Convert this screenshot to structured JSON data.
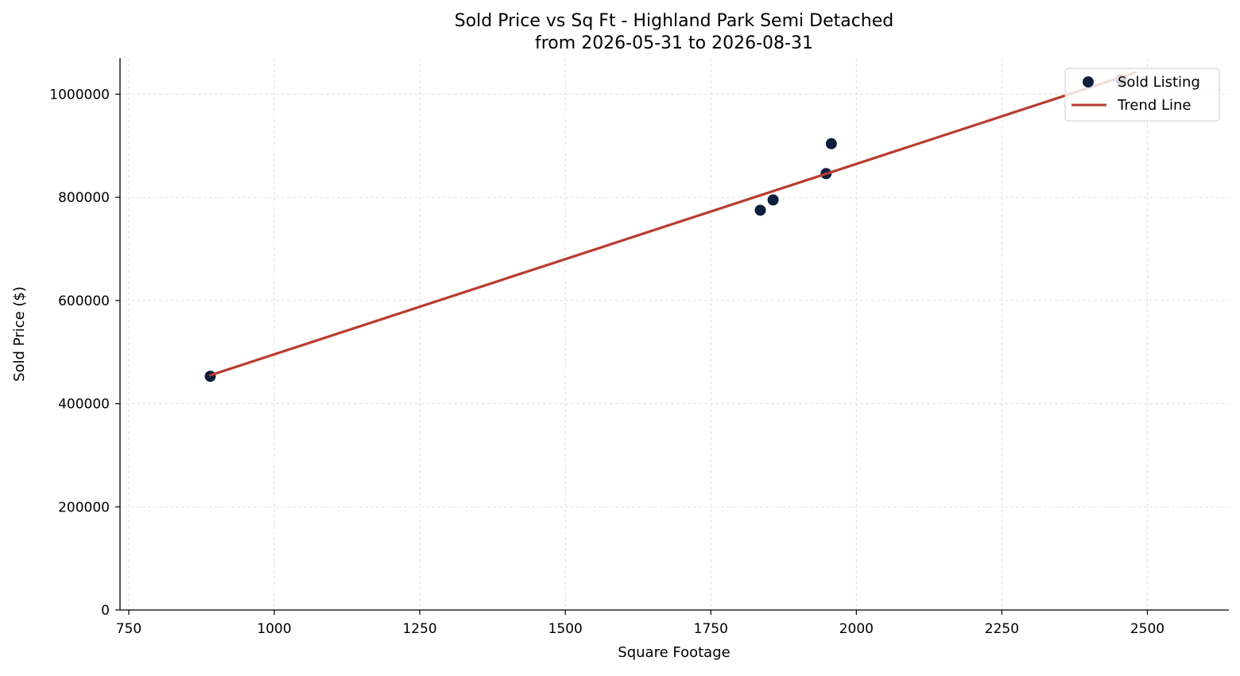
{
  "chart_data": {
    "type": "scatter",
    "title": "Sold Price vs Sq Ft - Highland Park Semi Detached",
    "subtitle": "from 2026-05-31 to 2026-08-31",
    "xlabel": "Square Footage",
    "ylabel": "Sold Price ($)",
    "xlim": [
      735,
      2640
    ],
    "ylim": [
      0,
      1070000
    ],
    "xticks": [
      750,
      1000,
      1250,
      1500,
      1750,
      2000,
      2250,
      2500
    ],
    "yticks": [
      0,
      200000,
      400000,
      600000,
      800000,
      1000000
    ],
    "grid": true,
    "legend_position": "top-right",
    "series": [
      {
        "name": "Sold Listing",
        "kind": "scatter",
        "color": "#0d1f3c",
        "points": [
          {
            "x": 890,
            "y": 453000
          },
          {
            "x": 1835,
            "y": 775000
          },
          {
            "x": 1857,
            "y": 795000
          },
          {
            "x": 1948,
            "y": 846000
          },
          {
            "x": 1957,
            "y": 904000
          },
          {
            "x": 2455,
            "y": 1028000
          }
        ]
      },
      {
        "name": "Trend Line",
        "kind": "line",
        "color": "#b83c2f",
        "points": [
          {
            "x": 890,
            "y": 455000
          },
          {
            "x": 2480,
            "y": 1042000
          }
        ]
      }
    ]
  }
}
